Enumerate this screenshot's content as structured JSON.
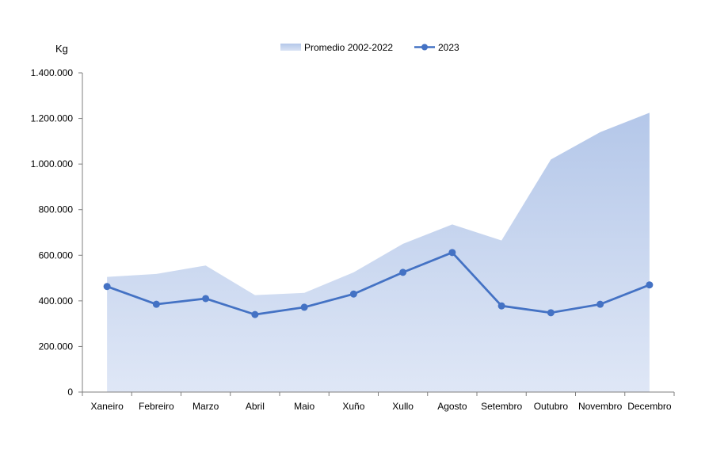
{
  "chart_data": {
    "type": "line",
    "ylabel": "Kg",
    "ylim": [
      0,
      1400000
    ],
    "yticks": [
      "0",
      "200.000",
      "400.000",
      "600.000",
      "800.000",
      "1.000.000",
      "1.200.000",
      "1.400.000"
    ],
    "categories": [
      "Xaneiro",
      "Febreiro",
      "Marzo",
      "Abril",
      "Maio",
      "Xuño",
      "Xullo",
      "Agosto",
      "Setembro",
      "Outubro",
      "Novembro",
      "Decembro"
    ],
    "series": [
      {
        "name": "Promedio 2002-2022",
        "kind": "area",
        "color": "#b4c7e7",
        "values": [
          505000,
          518000,
          555000,
          425000,
          435000,
          525000,
          650000,
          735000,
          665000,
          1020000,
          1140000,
          1225000
        ]
      },
      {
        "name": "2023",
        "kind": "line",
        "color": "#4472c4",
        "values": [
          463000,
          385000,
          410000,
          340000,
          372000,
          430000,
          525000,
          612000,
          378000,
          348000,
          385000,
          470000
        ]
      }
    ],
    "legend": "top-center",
    "grid": false
  }
}
